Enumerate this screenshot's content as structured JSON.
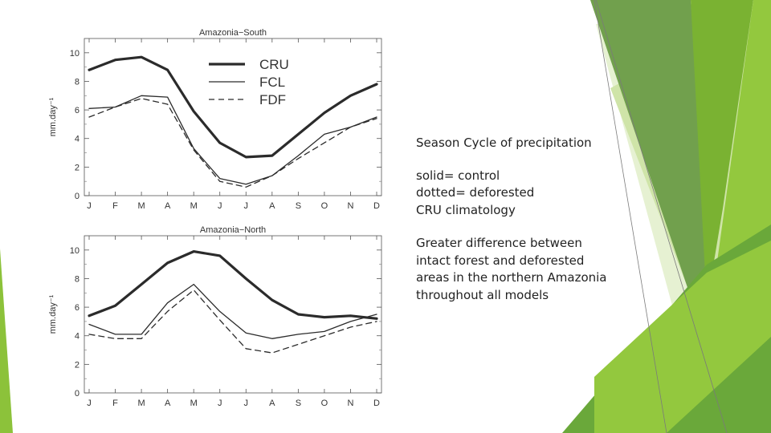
{
  "slide": {
    "heading": "Season Cycle of precipitation",
    "legend_notes": [
      "solid= control",
      "dotted= deforested",
      "CRU climatology"
    ],
    "finding": "Greater difference between intact forest and deforested areas in the northern Amazonia throughout all models",
    "colors": {
      "green_dark": "#71a04d",
      "green_mid": "#7ab232",
      "green_light": "#93c83e",
      "green_pale": "#cfe4a8",
      "green_faint": "#e6f1d2",
      "line_dark": "#2b2b2b"
    }
  },
  "chart_data": [
    {
      "type": "line",
      "title": "Amazonia−South",
      "ylabel": "mm.day⁻¹",
      "categories": [
        "J",
        "F",
        "M",
        "A",
        "M",
        "J",
        "J",
        "A",
        "S",
        "O",
        "N",
        "D"
      ],
      "ylim": [
        0,
        11
      ],
      "yticks": [
        0,
        2,
        4,
        6,
        8,
        10
      ],
      "legend_position": "top-center",
      "series": [
        {
          "name": "CRU",
          "style": "thick",
          "values": [
            8.8,
            9.5,
            9.7,
            8.8,
            5.9,
            3.7,
            2.7,
            2.8,
            4.3,
            5.8,
            7.0,
            7.8
          ]
        },
        {
          "name": "FCL",
          "style": "solid",
          "values": [
            6.1,
            6.2,
            7.0,
            6.9,
            3.3,
            1.2,
            0.8,
            1.4,
            2.8,
            4.3,
            4.8,
            5.5
          ]
        },
        {
          "name": "FDF",
          "style": "dashed",
          "values": [
            5.5,
            6.2,
            6.8,
            6.4,
            3.2,
            1.0,
            0.6,
            1.4,
            2.6,
            3.7,
            4.8,
            5.4
          ]
        }
      ]
    },
    {
      "type": "line",
      "title": "Amazonia−North",
      "ylabel": "mm.day⁻¹",
      "categories": [
        "J",
        "F",
        "M",
        "A",
        "M",
        "J",
        "J",
        "A",
        "S",
        "O",
        "N",
        "D"
      ],
      "ylim": [
        0,
        11
      ],
      "yticks": [
        0,
        2,
        4,
        6,
        8,
        10
      ],
      "series": [
        {
          "name": "CRU",
          "style": "thick",
          "values": [
            5.4,
            6.1,
            7.6,
            9.1,
            9.9,
            9.6,
            8.0,
            6.5,
            5.5,
            5.3,
            5.4,
            5.2
          ]
        },
        {
          "name": "FCL",
          "style": "solid",
          "values": [
            4.8,
            4.1,
            4.1,
            6.3,
            7.6,
            5.7,
            4.2,
            3.8,
            4.1,
            4.3,
            5.0,
            5.5
          ]
        },
        {
          "name": "FDF",
          "style": "dashed",
          "values": [
            4.1,
            3.8,
            3.8,
            5.7,
            7.2,
            5.1,
            3.1,
            2.8,
            3.4,
            4.0,
            4.6,
            5.0
          ]
        }
      ]
    }
  ]
}
